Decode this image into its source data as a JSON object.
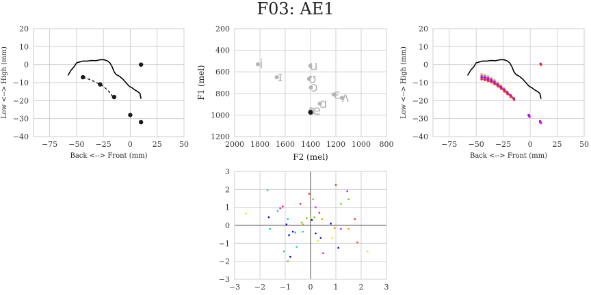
{
  "figure": {
    "title": "F03: AE1"
  },
  "chart_data": [
    {
      "id": "articulatory-left",
      "type": "line",
      "xlabel": "Back <--> Front (mm)",
      "ylabel": "Low <--> High (mm)",
      "xlim": [
        -90,
        50
      ],
      "ylim": [
        -40,
        20
      ],
      "xticks": [
        -75,
        -50,
        -25,
        0,
        25,
        50
      ],
      "yticks": [
        -40,
        -30,
        -20,
        -10,
        0,
        10,
        20
      ],
      "grid": true,
      "palate_outline": {
        "x": [
          -58,
          -55,
          -52,
          -50,
          -47,
          -44,
          -40,
          -36,
          -32,
          -30,
          -27,
          -24,
          -21,
          -19,
          -17,
          -15,
          -13,
          -10,
          -7,
          -4,
          -1,
          2,
          4,
          7,
          9,
          10
        ],
        "y": [
          -6,
          -3,
          -1,
          1,
          1.5,
          2,
          2,
          2.3,
          2.2,
          2.5,
          2.8,
          2.7,
          2,
          1,
          -1,
          -4,
          -5.5,
          -6.5,
          -8,
          -10,
          -12,
          -13,
          -14,
          -15,
          -16,
          -19
        ]
      },
      "tongue_dashed": {
        "x": [
          -44,
          -40,
          -36,
          -32,
          -28,
          -24,
          -20,
          -16
        ],
        "y": [
          -7.2,
          -7.8,
          -8.7,
          -9.8,
          -11,
          -12.6,
          -14.8,
          -18
        ]
      },
      "points": [
        {
          "x": -44,
          "y": -7
        },
        {
          "x": -28,
          "y": -11
        },
        {
          "x": -15,
          "y": -18
        },
        {
          "x": 10,
          "y": 0
        },
        {
          "x": 0,
          "y": -28
        },
        {
          "x": 10,
          "y": -32
        }
      ]
    },
    {
      "id": "formant-space",
      "type": "scatter",
      "xlabel": "F2 (mel)",
      "ylabel": "F1 (mel)",
      "xlim": [
        2000,
        800
      ],
      "ylim": [
        1200,
        200
      ],
      "xticks": [
        2000,
        1800,
        1600,
        1400,
        1200,
        1000,
        800
      ],
      "yticks": [
        200,
        400,
        600,
        800,
        1000,
        1200
      ],
      "grid": true,
      "vowel_labels": [
        {
          "text": "i",
          "x": 1790,
          "y": 530
        },
        {
          "text": "ɪ",
          "x": 1640,
          "y": 650
        },
        {
          "text": "u",
          "x": 1375,
          "y": 545
        },
        {
          "text": "ʊ",
          "x": 1385,
          "y": 665
        },
        {
          "text": "ɔ",
          "x": 1370,
          "y": 745
        },
        {
          "text": "ɑ",
          "x": 1300,
          "y": 895
        },
        {
          "text": "ɛ",
          "x": 1190,
          "y": 810
        },
        {
          "text": "ʌ",
          "x": 1125,
          "y": 840
        },
        {
          "text": "æ",
          "x": 1370,
          "y": 960
        }
      ],
      "points": [
        {
          "x": 1400,
          "y": 975
        }
      ]
    },
    {
      "id": "articulatory-right",
      "type": "line",
      "xlabel": "Back <--> Front (mm)",
      "ylabel": "Low <--> High (mm)",
      "xlim": [
        -90,
        50
      ],
      "ylim": [
        -40,
        20
      ],
      "xticks": [
        -75,
        -50,
        -25,
        0,
        25,
        50
      ],
      "yticks": [
        -40,
        -30,
        -20,
        -10,
        0,
        10,
        20
      ],
      "grid": true,
      "palate_outline": {
        "x": [
          -58,
          -55,
          -52,
          -50,
          -47,
          -44,
          -40,
          -36,
          -32,
          -30,
          -27,
          -24,
          -21,
          -19,
          -17,
          -15,
          -13,
          -10,
          -7,
          -4,
          -1,
          2,
          4,
          7,
          9,
          10
        ],
        "y": [
          -6,
          -3,
          -1,
          1,
          1.5,
          2,
          2,
          2.3,
          2.2,
          2.5,
          2.8,
          2.7,
          2,
          1,
          -1,
          -4,
          -5.5,
          -6.5,
          -8,
          -10,
          -12,
          -13,
          -14,
          -15,
          -16,
          -19
        ]
      },
      "tongue_fan": {
        "series": [
          {
            "color": "#90e090",
            "y_offset": 2.0
          },
          {
            "color": "#ff9a3c",
            "y_offset": 1.4
          },
          {
            "color": "#ff00ff",
            "y_offset": 0.8
          },
          {
            "color": "#3c3cff",
            "y_offset": 0.2
          },
          {
            "color": "#dd1177",
            "y_offset": -0.4
          },
          {
            "color": "#ff2222",
            "y_offset": -1.0
          }
        ],
        "x": [
          -45,
          -42,
          -39,
          -36,
          -33,
          -30,
          -27,
          -24,
          -21,
          -18,
          -15
        ],
        "y": [
          -7.2,
          -7.6,
          -8.2,
          -9.0,
          -10.1,
          -11.4,
          -12.8,
          -14.3,
          -15.9,
          -17.5,
          -19.2
        ]
      },
      "clusters": [
        {
          "x": 10,
          "y": 0,
          "colors": [
            "#dd1177",
            "#ff2222"
          ]
        },
        {
          "x": -1,
          "y": -28.5,
          "colors": [
            "#dd1177",
            "#3c3cff",
            "#ff00ff"
          ]
        },
        {
          "x": 9.5,
          "y": -32,
          "colors": [
            "#dd1177",
            "#3c3cff",
            "#ff00ff"
          ]
        }
      ]
    },
    {
      "id": "component-scatter",
      "type": "scatter",
      "xlim": [
        -3,
        3
      ],
      "ylim": [
        -3,
        3
      ],
      "xticks": [
        -3,
        -2,
        -1,
        0,
        1,
        2,
        3
      ],
      "yticks": [
        -3,
        -2,
        -1,
        0,
        1,
        2,
        3
      ],
      "grid": true,
      "zero_lines": true,
      "points": [
        {
          "x": -2.55,
          "y": 0.65,
          "color": "#e8e800"
        },
        {
          "x": -1.7,
          "y": 1.95,
          "color": "#00e0a0"
        },
        {
          "x": -1.65,
          "y": 0.45,
          "color": "#0000dd"
        },
        {
          "x": -1.6,
          "y": -0.2,
          "color": "#00e0a0"
        },
        {
          "x": -1.3,
          "y": 0.8,
          "color": "#00e0a0"
        },
        {
          "x": -1.2,
          "y": 0.95,
          "color": "#ff00ff"
        },
        {
          "x": -1.1,
          "y": 1.05,
          "color": "#dd1177"
        },
        {
          "x": -1.05,
          "y": -1.45,
          "color": "#00e0a0"
        },
        {
          "x": -0.95,
          "y": 0.05,
          "color": "#0000dd"
        },
        {
          "x": -0.9,
          "y": 0.35,
          "color": "#00e0a0"
        },
        {
          "x": -0.85,
          "y": -0.55,
          "color": "#0000dd"
        },
        {
          "x": -0.8,
          "y": -1.75,
          "color": "#0000dd"
        },
        {
          "x": -0.9,
          "y": -2.0,
          "color": "#55dd00"
        },
        {
          "x": -0.7,
          "y": -0.35,
          "color": "#0000dd"
        },
        {
          "x": -0.6,
          "y": -0.4,
          "color": "#00bbff"
        },
        {
          "x": -0.55,
          "y": -1.2,
          "color": "#00e0a0"
        },
        {
          "x": -0.4,
          "y": 1.2,
          "color": "#dd1177"
        },
        {
          "x": -0.35,
          "y": 0.15,
          "color": "#55dd00"
        },
        {
          "x": -0.3,
          "y": 0.05,
          "color": "#e8a000"
        },
        {
          "x": -0.3,
          "y": -0.35,
          "color": "#00e0a0"
        },
        {
          "x": -0.15,
          "y": 0.4,
          "color": "#55dd00"
        },
        {
          "x": -0.05,
          "y": 1.75,
          "color": "#ff3300"
        },
        {
          "x": 0.0,
          "y": 0.4,
          "color": "#e8e800"
        },
        {
          "x": 0.05,
          "y": 0.3,
          "color": "#0000dd"
        },
        {
          "x": 0.1,
          "y": 1.45,
          "color": "#e8a000"
        },
        {
          "x": 0.15,
          "y": 0.45,
          "color": "#55dd00"
        },
        {
          "x": 0.2,
          "y": 1.0,
          "color": "#ff00ff"
        },
        {
          "x": 0.2,
          "y": -0.45,
          "color": "#0000dd"
        },
        {
          "x": 0.3,
          "y": -0.85,
          "color": "#e8e800"
        },
        {
          "x": 0.35,
          "y": 0.7,
          "color": "#dd1177"
        },
        {
          "x": 0.4,
          "y": -0.7,
          "color": "#0000dd"
        },
        {
          "x": 0.45,
          "y": 0.35,
          "color": "#e8a000"
        },
        {
          "x": 0.5,
          "y": -1.55,
          "color": "#ff00ff"
        },
        {
          "x": 0.8,
          "y": 0.1,
          "color": "#0000dd"
        },
        {
          "x": 0.85,
          "y": -0.7,
          "color": "#e8e800"
        },
        {
          "x": 0.95,
          "y": -0.15,
          "color": "#e8a000"
        },
        {
          "x": 1.0,
          "y": 2.25,
          "color": "#ff3300"
        },
        {
          "x": 1.1,
          "y": -1.25,
          "color": "#0000dd"
        },
        {
          "x": 1.2,
          "y": 1.2,
          "color": "#55dd00"
        },
        {
          "x": 1.2,
          "y": -0.2,
          "color": "#ff00ff"
        },
        {
          "x": 1.45,
          "y": 1.9,
          "color": "#ff00ff"
        },
        {
          "x": 1.5,
          "y": 1.45,
          "color": "#55dd00"
        },
        {
          "x": 1.5,
          "y": -0.2,
          "color": "#e8a000"
        },
        {
          "x": 1.75,
          "y": 0.35,
          "color": "#ff3300"
        },
        {
          "x": 1.85,
          "y": -0.95,
          "color": "#ff3300"
        },
        {
          "x": 2.25,
          "y": -1.45,
          "color": "#e8e800"
        }
      ]
    }
  ]
}
